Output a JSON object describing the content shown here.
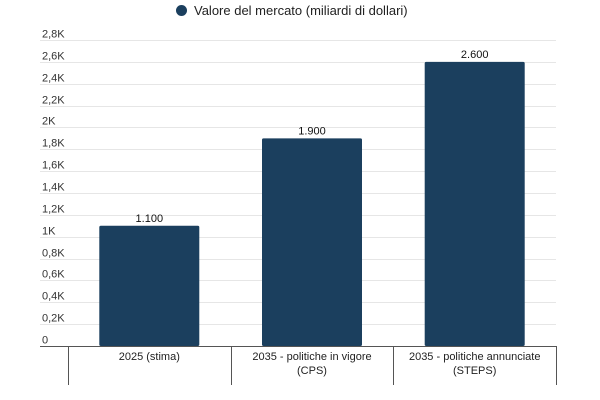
{
  "chart_data": {
    "type": "bar",
    "categories": [
      [
        "2025 (stima)"
      ],
      [
        "2035 - politiche in vigore",
        "(CPS)"
      ],
      [
        "2035 - politiche annunciate",
        "(STEPS)"
      ]
    ],
    "series": [
      {
        "name": "Valore del mercato (miliardi di dollari)",
        "values": [
          1100,
          1900,
          2600
        ],
        "data_labels": [
          "1.100",
          "1.900",
          "2.600"
        ],
        "color": "#1b3f5e"
      }
    ],
    "y_ticks": [
      {
        "value": 0,
        "label": "0"
      },
      {
        "value": 200,
        "label": "0,2K"
      },
      {
        "value": 400,
        "label": "0,4K"
      },
      {
        "value": 600,
        "label": "0,6K"
      },
      {
        "value": 800,
        "label": "0,8K"
      },
      {
        "value": 1000,
        "label": "1K"
      },
      {
        "value": 1200,
        "label": "1,2K"
      },
      {
        "value": 1400,
        "label": "1,4K"
      },
      {
        "value": 1600,
        "label": "1,6K"
      },
      {
        "value": 1800,
        "label": "1,8K"
      },
      {
        "value": 2000,
        "label": "2K"
      },
      {
        "value": 2200,
        "label": "2,2K"
      },
      {
        "value": 2400,
        "label": "2,4K"
      },
      {
        "value": 2600,
        "label": "2,6K"
      },
      {
        "value": 2800,
        "label": "2,8K"
      }
    ],
    "ylim": [
      0,
      2800
    ],
    "grid": true,
    "legend_position": "top",
    "title": "",
    "xlabel": "",
    "ylabel": "",
    "colors": {
      "grid": "#e6e6e6",
      "axis": "#555555"
    }
  }
}
